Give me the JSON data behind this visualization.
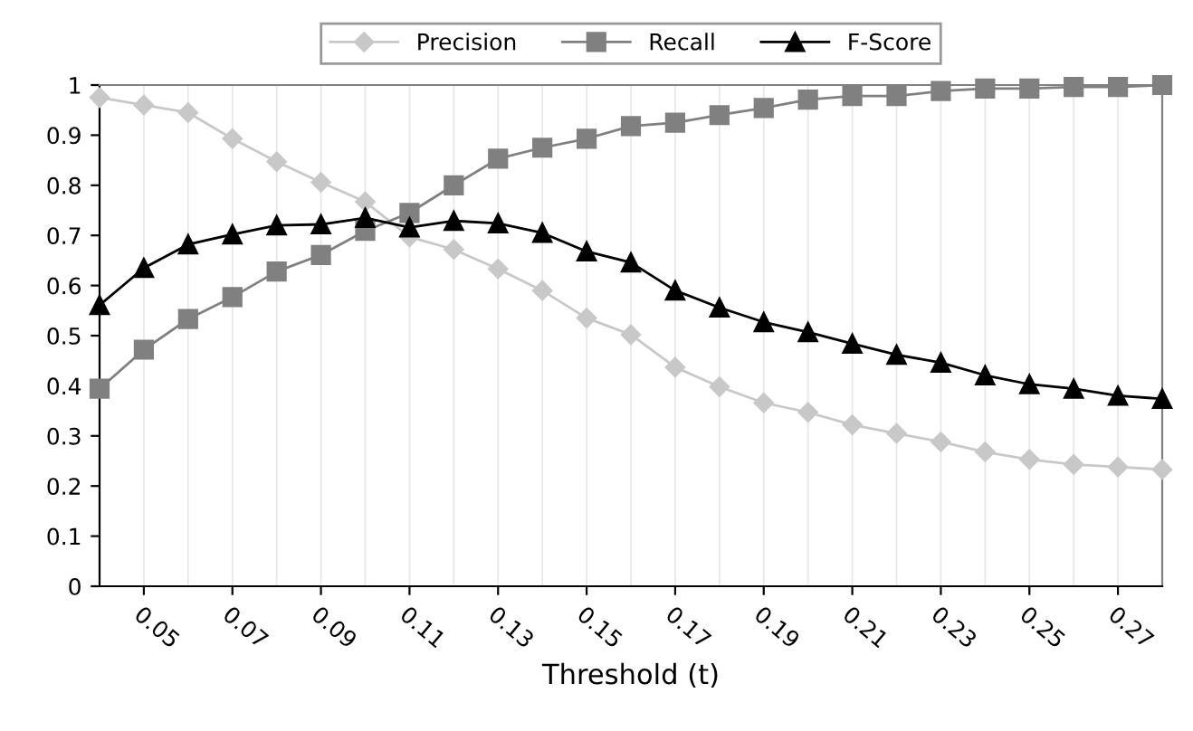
{
  "chart_data": {
    "type": "line",
    "xlabel": "Threshold (t)",
    "x": [
      0.04,
      0.05,
      0.06,
      0.07,
      0.08,
      0.09,
      0.1,
      0.11,
      0.12,
      0.13,
      0.14,
      0.15,
      0.16,
      0.17,
      0.18,
      0.19,
      0.2,
      0.21,
      0.22,
      0.23,
      0.24,
      0.25,
      0.26,
      0.27,
      0.28
    ],
    "series": [
      {
        "name": "Precision",
        "color": "#c8c8c8",
        "marker": "diamond",
        "values": [
          0.975,
          0.96,
          0.945,
          0.893,
          0.847,
          0.806,
          0.767,
          0.697,
          0.672,
          0.633,
          0.59,
          0.535,
          0.502,
          0.437,
          0.398,
          0.366,
          0.347,
          0.322,
          0.305,
          0.288,
          0.268,
          0.253,
          0.243,
          0.238,
          0.233
        ]
      },
      {
        "name": "Recall",
        "color": "#808080",
        "marker": "square",
        "values": [
          0.394,
          0.472,
          0.533,
          0.577,
          0.628,
          0.661,
          0.709,
          0.745,
          0.8,
          0.853,
          0.875,
          0.893,
          0.918,
          0.925,
          0.94,
          0.954,
          0.971,
          0.978,
          0.978,
          0.988,
          0.993,
          0.993,
          0.996,
          0.996,
          1.0
        ]
      },
      {
        "name": "F-Score",
        "color": "#000000",
        "marker": "triangle",
        "values": [
          0.561,
          0.635,
          0.682,
          0.702,
          0.72,
          0.722,
          0.735,
          0.716,
          0.729,
          0.724,
          0.705,
          0.668,
          0.646,
          0.59,
          0.556,
          0.527,
          0.507,
          0.484,
          0.462,
          0.446,
          0.421,
          0.403,
          0.394,
          0.38,
          0.374
        ]
      }
    ],
    "xlim": [
      0.04,
      0.28
    ],
    "xticks": [
      {
        "value": 0.04,
        "label": null
      },
      0.05,
      {
        "value": 0.06,
        "label": null
      },
      0.07,
      {
        "value": 0.08,
        "label": null
      },
      0.09,
      {
        "value": 0.1,
        "label": null
      },
      0.11,
      {
        "value": 0.12,
        "label": null
      },
      0.13,
      {
        "value": 0.14,
        "label": null
      },
      0.15,
      {
        "value": 0.16,
        "label": null
      },
      0.17,
      {
        "value": 0.18,
        "label": null
      },
      0.19,
      {
        "value": 0.2,
        "label": null
      },
      0.21,
      {
        "value": 0.22,
        "label": null
      },
      0.23,
      {
        "value": 0.24,
        "label": null
      },
      0.25,
      {
        "value": 0.26,
        "label": null
      },
      0.27,
      {
        "value": 0.28,
        "label": null
      }
    ],
    "ylim": [
      0,
      1
    ],
    "yticks": [
      0,
      0.1,
      0.2,
      0.3,
      0.4,
      0.5,
      0.6,
      0.7,
      0.8,
      0.9,
      1
    ],
    "grid": "x",
    "legend": "top",
    "line_style": "solid"
  }
}
